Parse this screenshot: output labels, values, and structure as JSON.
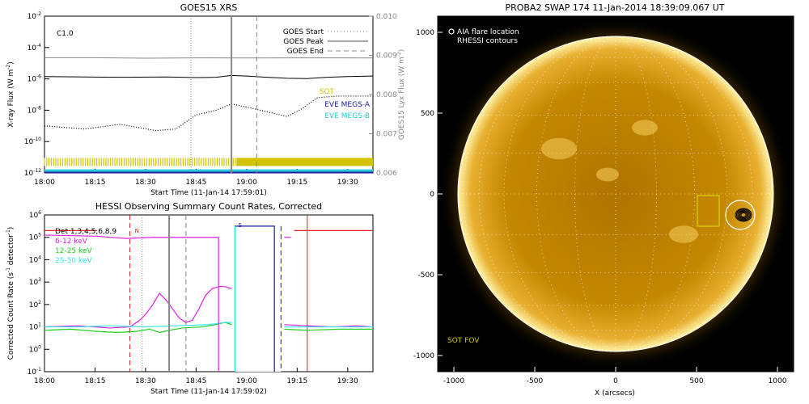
{
  "chart_data": [
    {
      "type": "line",
      "title": "GOES15 XRS",
      "xlabel": "Start Time (11-Jan-14 17:59:01)",
      "ylabel": "X-ray Flux (W m",
      "ylabel_exp": "-2",
      "ylabel_tail": ")",
      "ylabel_right": "GOES15 Lyx Flux (W m",
      "ylabel_right_exp": "-2",
      "ylabel_right_tail": ")",
      "x_ticks": [
        "18:00",
        "18:15",
        "18:30",
        "18:45",
        "19:00",
        "19:15",
        "19:30"
      ],
      "x_range_min": [
        0,
        65
      ],
      "y_log": true,
      "y_range_exp": [
        -12,
        -2
      ],
      "y_ticks": [
        "10",
        "10",
        "10",
        "10",
        "10",
        "10"
      ],
      "y_tick_exps": [
        "-2",
        "-4",
        "-6",
        "-8",
        "-10",
        "-12"
      ],
      "y_right_range": [
        0.006,
        0.01
      ],
      "y_right_ticks": [
        "0.010",
        "0.009",
        "0.008",
        "0.007",
        "0.006"
      ],
      "class_label": "C1.0",
      "legend": [
        {
          "label": "GOES Start",
          "style": "dotted"
        },
        {
          "label": "GOES Peak",
          "style": "solid"
        },
        {
          "label": "GOES End",
          "style": "dashed"
        }
      ],
      "instrument_labels": [
        {
          "label": "SOT",
          "color": "#d4c400"
        },
        {
          "label": "EVE MEGS-A",
          "color": "#1a1aa0"
        },
        {
          "label": "EVE MEGS-B",
          "color": "#28c8d8"
        }
      ],
      "markers_min": {
        "start": 29,
        "peak": 37,
        "end": 42
      },
      "series": [
        {
          "color": "#000000",
          "points": [
            [
              0,
              -5.85
            ],
            [
              8,
              -5.88
            ],
            [
              16,
              -5.9
            ],
            [
              24,
              -5.88
            ],
            [
              30,
              -5.92
            ],
            [
              34,
              -5.9
            ],
            [
              37,
              -5.78
            ],
            [
              40,
              -5.82
            ],
            [
              44,
              -5.9
            ],
            [
              48,
              -5.96
            ],
            [
              52,
              -5.98
            ],
            [
              56,
              -5.9
            ],
            [
              60,
              -5.85
            ],
            [
              65,
              -5.82
            ]
          ]
        },
        {
          "color": "#8a8a8a",
          "points": [
            [
              0,
              -4.65
            ],
            [
              10,
              -4.65
            ],
            [
              20,
              -4.68
            ],
            [
              30,
              -4.66
            ],
            [
              40,
              -4.67
            ],
            [
              50,
              -4.66
            ],
            [
              58,
              -4.66
            ],
            [
              65,
              -4.67
            ]
          ]
        },
        {
          "color": "#000000",
          "dotted": true,
          "points": [
            [
              0,
              -9.0
            ],
            [
              8,
              -9.2
            ],
            [
              15,
              -8.9
            ],
            [
              22,
              -9.3
            ],
            [
              26,
              -9.2
            ],
            [
              30,
              -8.3
            ],
            [
              34,
              -8.0
            ],
            [
              37,
              -7.6
            ],
            [
              40,
              -7.8
            ],
            [
              44,
              -8.1
            ],
            [
              48,
              -8.4
            ],
            [
              51,
              -7.9
            ],
            [
              54,
              -7.2
            ],
            [
              58,
              -7.1
            ],
            [
              62,
              -7.1
            ],
            [
              65,
              -7.1
            ]
          ]
        }
      ],
      "bars": [
        {
          "color": "#d4c400",
          "y_exp": -11.3
        },
        {
          "color": "#1a1aa0",
          "y_exp": -11.95
        },
        {
          "color": "#28c8d8",
          "y_exp": -11.85
        }
      ]
    },
    {
      "type": "line",
      "title": "HESSI Observing Summary Count Rates, Corrected",
      "xlabel": "Start Time (11-Jan-14 17:59:02)",
      "ylabel": "Corrected Count Rate (s",
      "ylabel_exp": "-1",
      "ylabel_tail": " detector",
      "ylabel_exp2": "-1",
      "ylabel_tail2": ")",
      "x_ticks": [
        "18:00",
        "18:15",
        "18:30",
        "18:45",
        "19:00",
        "19:15",
        "19:30"
      ],
      "x_range_min": [
        0,
        65
      ],
      "y_log": true,
      "y_range_exp": [
        -1,
        6
      ],
      "y_ticks": [
        "10",
        "10",
        "10",
        "10",
        "10",
        "10",
        "10",
        "10"
      ],
      "y_tick_exps": [
        "6",
        "5",
        "4",
        "3",
        "2",
        "1",
        "0",
        "-1"
      ],
      "legend": [
        {
          "label": "Det 1,3,4,5,6,8,9",
          "color": "#000000"
        },
        {
          "label": "6-12 keV",
          "color": "#e020e0"
        },
        {
          "label": "12-25 keV",
          "color": "#20d020"
        },
        {
          "label": "25-50 keV",
          "color": "#30e8e8"
        }
      ],
      "flags": [
        {
          "label": "N",
          "color": "#e02020"
        },
        {
          "label": "S",
          "color": "#1a1aa0"
        }
      ],
      "markers_min": {
        "start": 29,
        "peak": 37,
        "end": 42
      },
      "series": [
        {
          "color": "#e020e0",
          "points": [
            [
              0,
              5.1
            ],
            [
              16,
              5.05
            ],
            [
              20,
              5.0
            ],
            [
              25,
              4.95
            ],
            [
              33,
              5.0
            ],
            [
              40,
              5.0
            ],
            [
              45,
              5.0
            ],
            [
              50,
              5.0
            ],
            [
              53,
              5.0
            ]
          ]
        },
        {
          "color": "#e020e0",
          "points": [
            [
              26,
              1.0
            ],
            [
              29,
              1.3
            ],
            [
              31,
              1.6
            ],
            [
              33,
              2.0
            ],
            [
              35,
              2.5
            ],
            [
              37,
              2.2
            ],
            [
              39,
              1.8
            ],
            [
              41,
              1.4
            ],
            [
              43,
              1.2
            ],
            [
              45,
              1.3
            ],
            [
              47,
              1.8
            ],
            [
              49,
              2.4
            ],
            [
              51,
              2.7
            ],
            [
              53,
              2.8
            ],
            [
              55,
              2.8
            ],
            [
              57,
              2.7
            ]
          ]
        },
        {
          "color": "#e020e0",
          "points": [
            [
              0,
              1.0
            ],
            [
              10,
              1.05
            ],
            [
              20,
              0.95
            ],
            [
              26,
              1.0
            ]
          ]
        },
        {
          "color": "#20d020",
          "points": [
            [
              0,
              0.85
            ],
            [
              8,
              0.9
            ],
            [
              16,
              0.8
            ],
            [
              22,
              0.75
            ],
            [
              28,
              0.8
            ],
            [
              32,
              0.9
            ],
            [
              35,
              0.75
            ],
            [
              38,
              0.85
            ],
            [
              42,
              0.95
            ],
            [
              48,
              1.0
            ],
            [
              52,
              1.1
            ],
            [
              55,
              1.2
            ],
            [
              57,
              1.1
            ]
          ]
        },
        {
          "color": "#30e8e8",
          "points": [
            [
              0,
              1.0
            ],
            [
              10,
              1.0
            ],
            [
              20,
              1.05
            ],
            [
              30,
              1.0
            ],
            [
              40,
              1.05
            ],
            [
              50,
              1.1
            ],
            [
              55,
              1.2
            ],
            [
              57,
              1.2
            ]
          ]
        },
        {
          "color": "#e020e0",
          "points": [
            [
              53,
              5.0
            ],
            [
              53,
              -1.0
            ]
          ]
        },
        {
          "color": "#1a1aa0",
          "points": [
            [
              58,
              -1.0
            ],
            [
              58,
              5.5
            ],
            [
              70,
              5.5
            ],
            [
              70,
              -1.0
            ]
          ]
        },
        {
          "color": "#e020e0",
          "points": [
            [
              73,
              5.0
            ],
            [
              75,
              5.0
            ]
          ]
        },
        {
          "color": "#e020e0",
          "points": [
            [
              73,
              1.1
            ],
            [
              80,
              1.05
            ],
            [
              88,
              1.0
            ],
            [
              95,
              1.05
            ],
            [
              100,
              1.0
            ]
          ]
        },
        {
          "color": "#20d020",
          "points": [
            [
              73,
              0.9
            ],
            [
              80,
              0.85
            ],
            [
              90,
              0.9
            ],
            [
              100,
              0.9
            ]
          ]
        },
        {
          "color": "#30e8e8",
          "points": [
            [
              73,
              1.0
            ],
            [
              85,
              1.0
            ],
            [
              100,
              1.0
            ]
          ]
        },
        {
          "color": "#e02020",
          "points": [
            [
              0,
              5.3
            ],
            [
              16,
              5.3
            ]
          ]
        },
        {
          "color": "#e02020",
          "points": [
            [
              76,
              5.3
            ],
            [
              100,
              5.3
            ]
          ]
        }
      ]
    },
    {
      "type": "scatter",
      "title": "PROBA2 SWAP 174 11-Jan-2014 18:39:09.067 UT",
      "xlabel": "X (arcsecs)",
      "ylabel": "",
      "x_ticks": [
        "-1000",
        "-500",
        "0",
        "500",
        "1000"
      ],
      "y_ticks": [
        "1000",
        "500",
        "0",
        "-500",
        "-1000"
      ],
      "xlim": [
        -1100,
        1100
      ],
      "ylim": [
        -1100,
        1100
      ],
      "legend": [
        {
          "label": "AIA flare location"
        },
        {
          "label": "RHESSI contours"
        }
      ],
      "fov_label": "SOT FOV",
      "solar_radius": 975,
      "flare": {
        "x": 770,
        "y": -130
      }
    }
  ]
}
